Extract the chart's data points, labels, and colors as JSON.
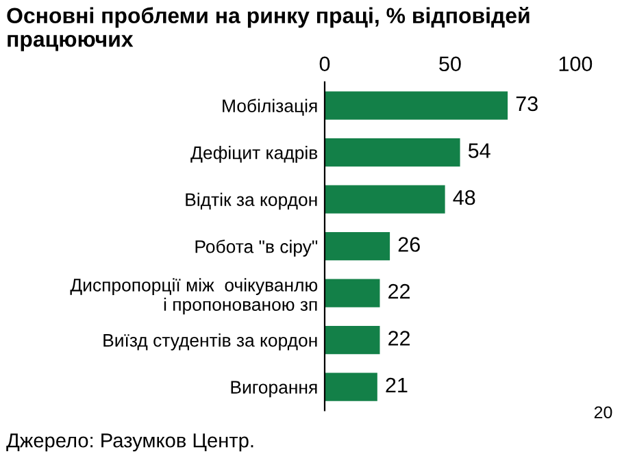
{
  "chart_data": {
    "type": "bar",
    "orientation": "horizontal",
    "title": "Основні проблеми на ринку праці, % відповідей працюючих",
    "categories": [
      "Мобілізація",
      "Дефіцит кадрів",
      "Відтік за кордон",
      "Робота \"в сіру\"",
      "Диспропорції між  очікуванлю\nі пропонованою зп",
      "Виїзд студентів за кордон",
      "Вигорання"
    ],
    "values": [
      73,
      54,
      48,
      26,
      22,
      22,
      21
    ],
    "color": "#138048",
    "xlim": [
      0,
      100
    ],
    "xticks": [
      0,
      50,
      100
    ],
    "data_labels": true,
    "grid": false,
    "legend": false,
    "annotations": [
      "Джерело: Разумков Центр.",
      "20"
    ]
  }
}
